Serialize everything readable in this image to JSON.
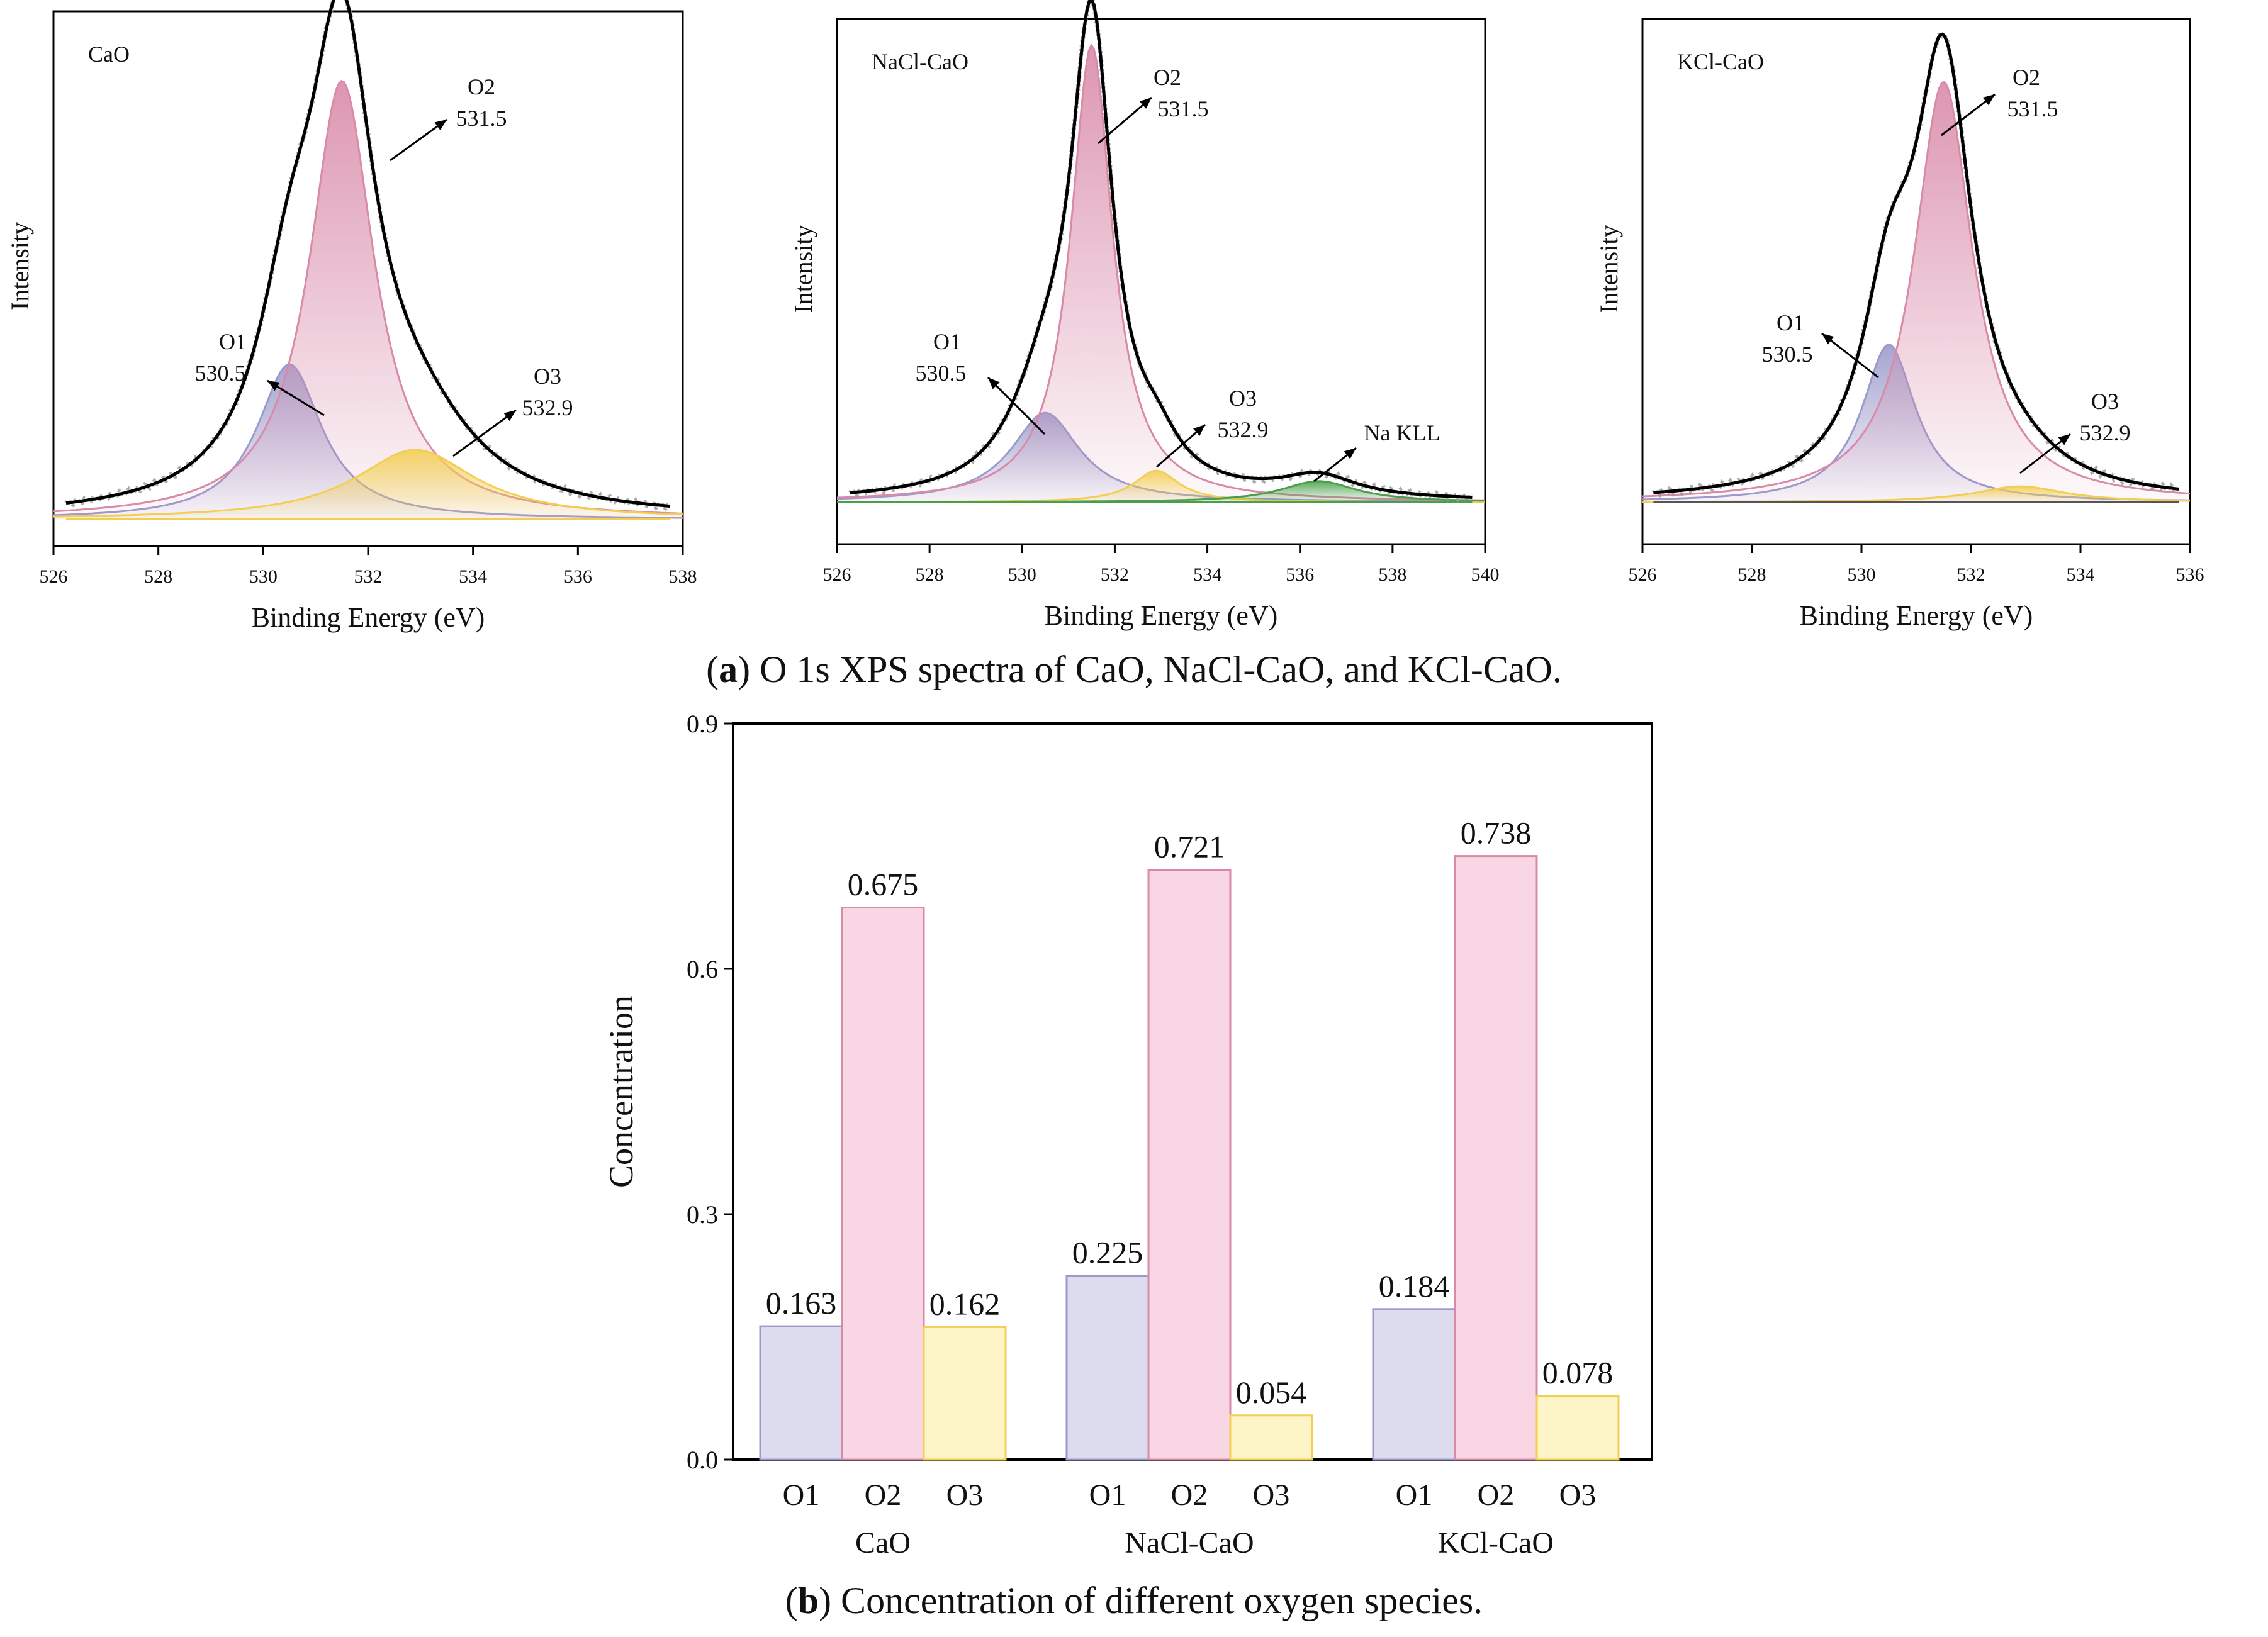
{
  "captions": {
    "a_letter": "a",
    "a_text": " O 1s XPS spectra of CaO, NaCl-CaO, and KCl-CaO.",
    "b_letter": "b",
    "b_text": " Concentration of different oxygen species."
  },
  "colors": {
    "o1": "#9a9acc",
    "o1_fill": "#dcdcee",
    "o2": "#d98aa8",
    "o2_fill": "#f8d6e3",
    "o3": "#f2cf54",
    "o3_fill": "#fdf4c8",
    "na": "#4aa04a",
    "envelope": "#000000",
    "raw": "#9a9a9a"
  },
  "chart_data": [
    {
      "type": "line",
      "title": "CaO",
      "xlabel": "Binding Energy (eV)",
      "ylabel": "Intensity",
      "xlim": [
        526,
        538
      ],
      "xticks": [
        "526",
        "528",
        "530",
        "532",
        "534",
        "536",
        "538"
      ],
      "baseline": 0.05,
      "peaks": [
        {
          "name": "O1",
          "center": 530.5,
          "height": 0.29,
          "width": 0.75
        },
        {
          "name": "O2",
          "center": 531.5,
          "height": 0.82,
          "width": 0.75
        },
        {
          "name": "O3",
          "center": 532.9,
          "height": 0.13,
          "width": 1.4
        }
      ],
      "annotations": [
        {
          "label": "O1",
          "value": "530.5"
        },
        {
          "label": "O2",
          "value": "531.5"
        },
        {
          "label": "O3",
          "value": "532.9"
        }
      ]
    },
    {
      "type": "line",
      "title": "NaCl-CaO",
      "xlabel": "Binding Energy (eV)",
      "ylabel": "Intensity",
      "xlim": [
        526,
        540
      ],
      "xticks": [
        "526",
        "528",
        "530",
        "532",
        "534",
        "536",
        "538",
        "540"
      ],
      "baseline": 0.08,
      "peaks": [
        {
          "name": "O1",
          "center": 530.5,
          "height": 0.17,
          "width": 0.9
        },
        {
          "name": "O2",
          "center": 531.5,
          "height": 0.87,
          "width": 0.55
        },
        {
          "name": "O3",
          "center": 532.9,
          "height": 0.06,
          "width": 0.6
        },
        {
          "name": "Na KLL",
          "center": 536.4,
          "height": 0.04,
          "width": 1.0
        }
      ],
      "annotations": [
        {
          "label": "O1",
          "value": "530.5"
        },
        {
          "label": "O2",
          "value": "531.5"
        },
        {
          "label": "O3",
          "value": "532.9"
        },
        {
          "label": "Na KLL",
          "value": ""
        }
      ]
    },
    {
      "type": "line",
      "title": "KCl-CaO",
      "xlabel": "Binding Energy (eV)",
      "ylabel": "Intensity",
      "xlim": [
        526,
        536
      ],
      "xticks": [
        "526",
        "528",
        "530",
        "532",
        "534",
        "536"
      ],
      "baseline": 0.08,
      "peaks": [
        {
          "name": "O1",
          "center": 530.5,
          "height": 0.3,
          "width": 0.6
        },
        {
          "name": "O2",
          "center": 531.5,
          "height": 0.8,
          "width": 0.65
        },
        {
          "name": "O3",
          "center": 532.9,
          "height": 0.03,
          "width": 1.0
        }
      ],
      "annotations": [
        {
          "label": "O1",
          "value": "530.5"
        },
        {
          "label": "O2",
          "value": "531.5"
        },
        {
          "label": "O3",
          "value": "532.9"
        }
      ]
    },
    {
      "type": "bar",
      "title": "",
      "xlabel": "",
      "ylabel": "Concentration",
      "ylim": [
        0,
        0.9
      ],
      "yticks": [
        "0.0",
        "0.3",
        "0.6",
        "0.9"
      ],
      "groups": [
        "CaO",
        "NaCl-CaO",
        "KCl-CaO"
      ],
      "categories": [
        "O1",
        "O2",
        "O3"
      ],
      "series": [
        {
          "name": "CaO",
          "values": [
            0.163,
            0.675,
            0.162
          ],
          "labels": [
            "0.163",
            "0.675",
            "0.162"
          ]
        },
        {
          "name": "NaCl-CaO",
          "values": [
            0.225,
            0.721,
            0.054
          ],
          "labels": [
            "0.225",
            "0.721",
            "0.054"
          ]
        },
        {
          "name": "KCl-CaO",
          "values": [
            0.184,
            0.738,
            0.078
          ],
          "labels": [
            "0.184",
            "0.738",
            "0.078"
          ]
        }
      ]
    }
  ]
}
